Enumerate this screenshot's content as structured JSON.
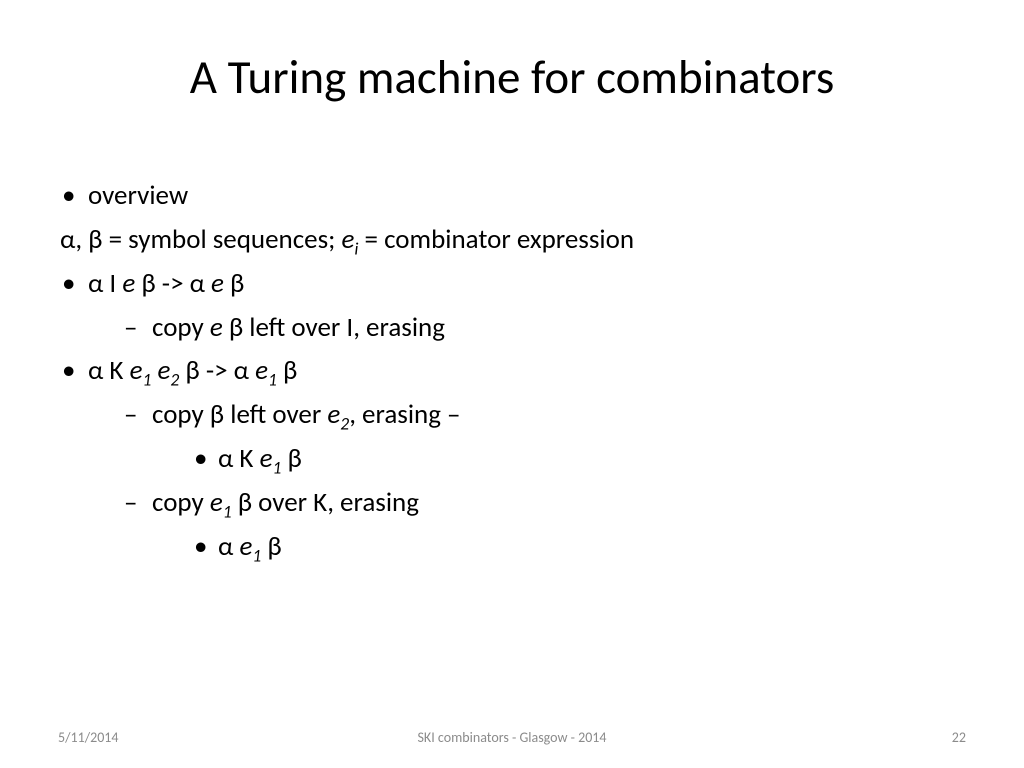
{
  "title": "A Turing machine for combinators",
  "lines": {
    "overview": "overview",
    "defs_pre": "α, β = symbol sequences; ",
    "defs_ei": "e",
    "defs_ei_sub": "i",
    "defs_post": " = combinator expression",
    "i_rule_a": "α I ",
    "i_rule_e1": "e",
    "i_rule_mid": " β -> α ",
    "i_rule_e2": "e",
    "i_rule_end": " β",
    "i_sub_a": "copy ",
    "i_sub_e": "e",
    "i_sub_b": " β left over I, erasing",
    "k_rule_a": "α K ",
    "k_rule_e1": "e",
    "k_rule_s1": "1",
    "k_rule_sp": " ",
    "k_rule_e2": "e",
    "k_rule_s2": "2",
    "k_rule_mid": " β -> α ",
    "k_rule_e3": "e",
    "k_rule_s3": "1",
    "k_rule_end": " β",
    "k_sub1_a": "copy β left over ",
    "k_sub1_e": "e",
    "k_sub1_s": "2",
    "k_sub1_b": ", erasing –",
    "k_sub1b_a": "α K ",
    "k_sub1b_e": "e",
    "k_sub1b_s": "1",
    "k_sub1b_b": " β",
    "k_sub2_a": "copy ",
    "k_sub2_e": "e",
    "k_sub2_s": "1",
    "k_sub2_b": " β over K, erasing",
    "k_sub2b_a": "α ",
    "k_sub2b_e": "e",
    "k_sub2b_s": "1",
    "k_sub2b_b": " β"
  },
  "footer": {
    "date": "5/11/2014",
    "mid": "SKI combinators - Glasgow - 2014",
    "page": "22"
  },
  "style": {
    "bg": "#ffffff",
    "text": "#000000",
    "footer_color": "#8b8b8b",
    "title_fontsize": 47,
    "body_fontsize": 27,
    "footer_fontsize": 14
  }
}
